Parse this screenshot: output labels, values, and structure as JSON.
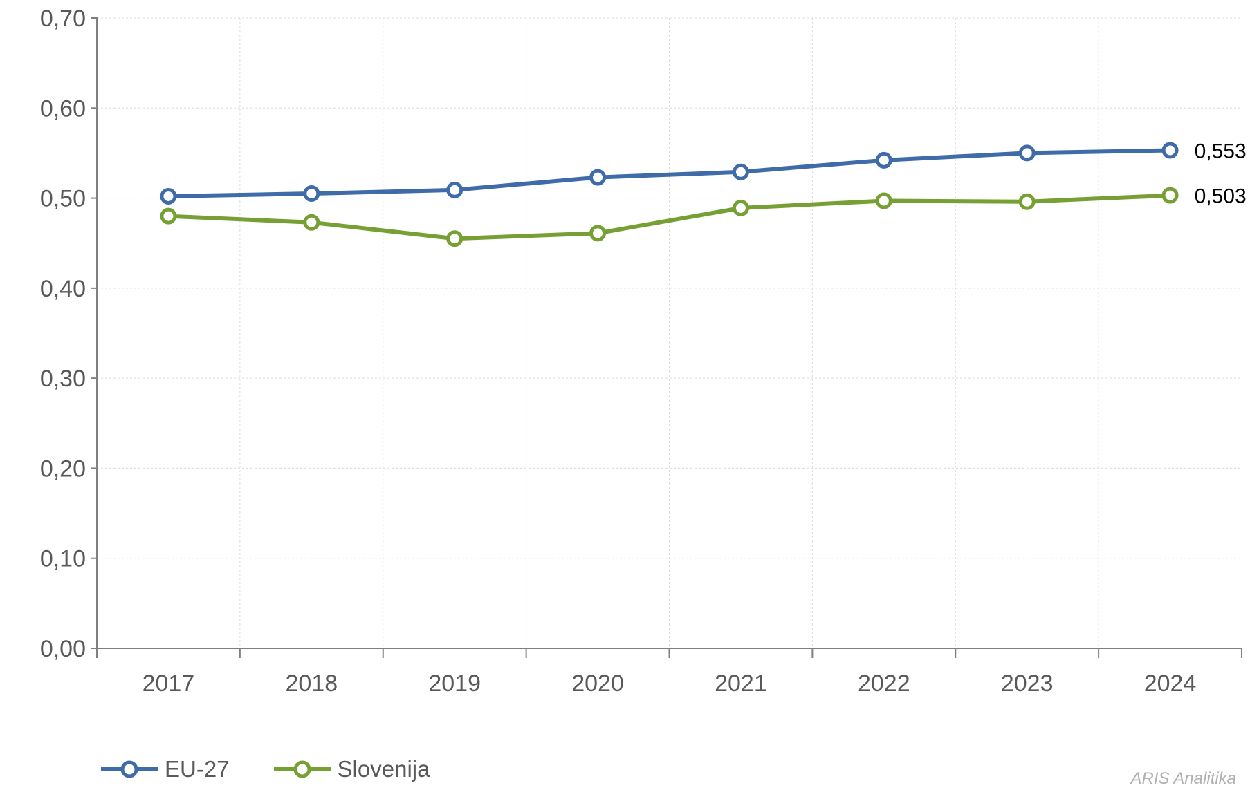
{
  "chart_data": {
    "type": "line",
    "categories": [
      "2017",
      "2018",
      "2019",
      "2020",
      "2021",
      "2022",
      "2023",
      "2024"
    ],
    "series": [
      {
        "name": "EU-27",
        "color": "#3f6ca8",
        "values": [
          0.502,
          0.505,
          0.509,
          0.523,
          0.529,
          0.542,
          0.55,
          0.553
        ]
      },
      {
        "name": "Slovenija",
        "color": "#76a033",
        "values": [
          0.48,
          0.473,
          0.455,
          0.461,
          0.489,
          0.497,
          0.496,
          0.503
        ]
      }
    ],
    "ylim": [
      0,
      0.7
    ],
    "yticks": [
      "0,00",
      "0,10",
      "0,20",
      "0,30",
      "0,40",
      "0,50",
      "0,60",
      "0,70"
    ],
    "end_labels": [
      "0,553",
      "0,503"
    ],
    "grid": true,
    "legend_position": "bottom-left"
  },
  "legend": [
    "EU-27",
    "Slovenija"
  ],
  "watermark": "ARIS Analitika"
}
